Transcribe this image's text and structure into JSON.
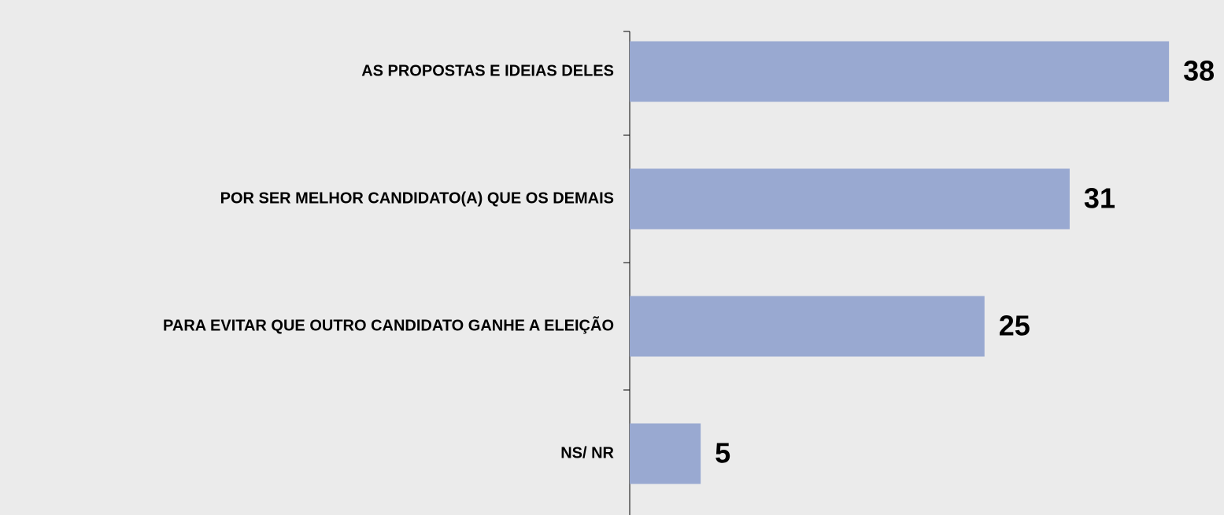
{
  "chart_data": {
    "type": "bar",
    "orientation": "horizontal",
    "categories": [
      "AS PROPOSTAS E IDEIAS DELES",
      "POR SER MELHOR CANDIDATO(A) QUE OS DEMAIS",
      "PARA EVITAR QUE OUTRO CANDIDATO GANHE A ELEIÇÃO",
      "NS/ NR"
    ],
    "values": [
      38,
      31,
      25,
      5
    ],
    "color": "#99a9d1"
  }
}
